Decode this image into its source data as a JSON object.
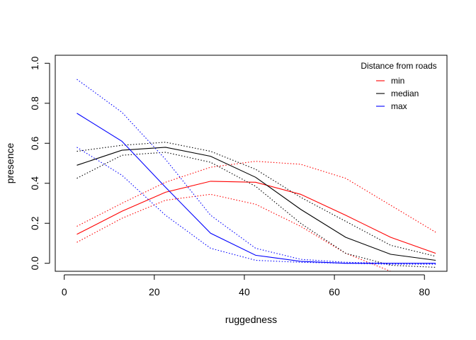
{
  "chart_data": {
    "type": "line",
    "title": "",
    "xlabel": "ruggedness",
    "ylabel": "presence",
    "xlim": [
      -2,
      85
    ],
    "ylim": [
      -0.04,
      1.04
    ],
    "x_ticks": [
      0,
      20,
      40,
      60,
      80
    ],
    "x_tick_labels": [
      "0",
      "20",
      "40",
      "60",
      "80"
    ],
    "y_ticks": [
      0.0,
      0.2,
      0.4,
      0.6,
      0.8,
      1.0
    ],
    "y_tick_labels": [
      "0.0",
      "0.2",
      "0.4",
      "0.6",
      "0.8",
      "1.0"
    ],
    "grid": false,
    "legend": {
      "title": "Distance from roads",
      "position": "top-right",
      "entries": [
        "min",
        "median",
        "max"
      ]
    },
    "x": [
      2.8,
      12.8,
      22.5,
      32.5,
      42.5,
      52.5,
      62.5,
      72.5,
      82.5
    ],
    "series": [
      {
        "name": "min",
        "color": "#ff0000",
        "values": [
          0.145,
          0.26,
          0.355,
          0.41,
          0.405,
          0.345,
          0.24,
          0.13,
          0.05
        ],
        "lower": [
          0.105,
          0.225,
          0.315,
          0.345,
          0.295,
          0.185,
          0.05,
          -0.04,
          -0.04
        ],
        "upper": [
          0.185,
          0.3,
          0.405,
          0.48,
          0.51,
          0.495,
          0.425,
          0.29,
          0.155
        ]
      },
      {
        "name": "median",
        "color": "#000000",
        "values": [
          0.49,
          0.565,
          0.58,
          0.535,
          0.43,
          0.27,
          0.13,
          0.045,
          0.015
        ],
        "lower": [
          0.425,
          0.54,
          0.555,
          0.505,
          0.385,
          0.2,
          0.05,
          -0.01,
          -0.02
        ],
        "upper": [
          0.56,
          0.59,
          0.605,
          0.56,
          0.47,
          0.33,
          0.21,
          0.09,
          0.035
        ]
      },
      {
        "name": "max",
        "color": "#0000ff",
        "values": [
          0.75,
          0.61,
          0.38,
          0.15,
          0.04,
          0.01,
          0.0,
          0.0,
          0.0
        ],
        "lower": [
          0.58,
          0.44,
          0.24,
          0.075,
          0.015,
          0.005,
          0.0,
          -0.005,
          -0.005
        ],
        "upper": [
          0.92,
          0.755,
          0.52,
          0.24,
          0.075,
          0.02,
          0.005,
          0.0,
          0.0
        ]
      }
    ]
  }
}
